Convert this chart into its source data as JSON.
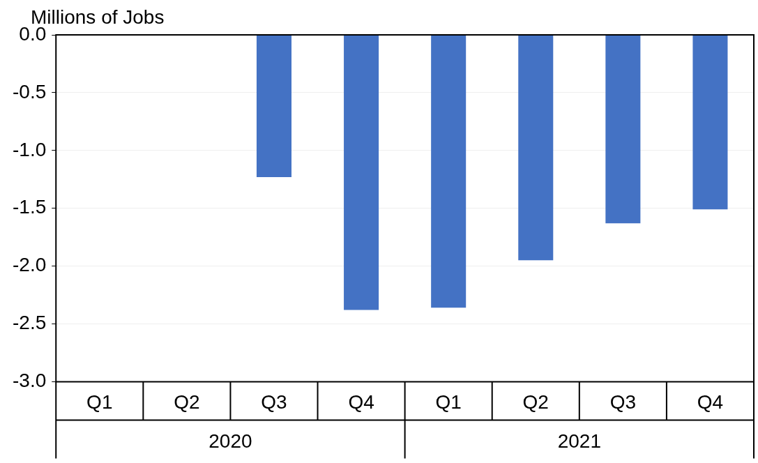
{
  "chart_data": {
    "type": "bar",
    "ylabel": "Millions of Jobs",
    "categories": [
      "Q1",
      "Q2",
      "Q3",
      "Q4",
      "Q1",
      "Q2",
      "Q3",
      "Q4"
    ],
    "values": [
      null,
      null,
      -1.23,
      -2.38,
      -2.36,
      -1.95,
      -1.63,
      -1.51
    ],
    "color": "#4472c4",
    "ylim": [
      -3,
      0
    ],
    "yticks": [
      {
        "value": -3,
        "label": "-3.0"
      },
      {
        "value": -2.5,
        "label": "-2.5"
      },
      {
        "value": -2,
        "label": "-2.0"
      },
      {
        "value": -1.5,
        "label": "-1.5"
      },
      {
        "value": -1,
        "label": "-1.0"
      },
      {
        "value": -0.5,
        "label": "-0.5"
      },
      {
        "value": 0,
        "label": "0.0"
      }
    ],
    "grid": "y",
    "legend": false,
    "annotations": [
      "2020",
      "2021"
    ]
  }
}
